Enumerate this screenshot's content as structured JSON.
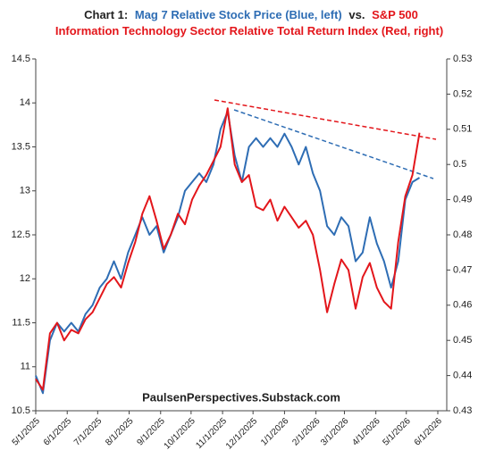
{
  "chart_data": {
    "type": "line",
    "title_parts": [
      {
        "text": "Chart 1:",
        "color": "#222222"
      },
      {
        "text": "Mag 7 Relative Stock Price (Blue, left)",
        "color": "#2e6db4"
      },
      {
        "text": "vs.",
        "color": "#222222"
      },
      {
        "text": "S&P 500 Information Technology Sector Relative Total Return Index (Red, right)",
        "color": "#e3161b"
      }
    ],
    "annotation": "PaulsenPerspectives.Substack.com",
    "x": [
      "5/1/2025",
      "5/8/2025",
      "5/15/2025",
      "5/22/2025",
      "5/29/2025",
      "6/5/2025",
      "6/12/2025",
      "6/19/2025",
      "6/26/2025",
      "7/3/2025",
      "7/10/2025",
      "7/17/2025",
      "7/24/2025",
      "7/31/2025",
      "8/7/2025",
      "8/14/2025",
      "8/21/2025",
      "8/28/2025",
      "9/4/2025",
      "9/11/2025",
      "9/18/2025",
      "9/25/2025",
      "10/2/2025",
      "10/9/2025",
      "10/16/2025",
      "10/23/2025",
      "10/30/2025",
      "11/6/2025",
      "11/13/2025",
      "11/20/2025",
      "11/27/2025",
      "12/4/2025",
      "12/11/2025",
      "12/18/2025",
      "12/25/2025",
      "1/1/2026",
      "1/8/2026",
      "1/15/2026",
      "1/22/2026",
      "1/29/2026",
      "2/5/2026",
      "2/12/2026",
      "2/19/2026",
      "2/26/2026",
      "3/5/2026",
      "3/12/2026",
      "3/19/2026",
      "3/26/2026",
      "4/2/2026",
      "4/9/2026",
      "4/16/2026",
      "4/23/2026",
      "4/30/2026",
      "5/7/2026",
      "5/14/2026"
    ],
    "series": [
      {
        "color": "#2e6db4",
        "axis": "y",
        "values": [
          10.9,
          10.7,
          11.3,
          11.5,
          11.4,
          11.5,
          11.4,
          11.6,
          11.7,
          11.9,
          12.0,
          12.2,
          12.0,
          12.3,
          12.5,
          12.7,
          12.5,
          12.6,
          12.3,
          12.5,
          12.7,
          13.0,
          13.1,
          13.2,
          13.1,
          13.3,
          13.7,
          13.9,
          13.4,
          13.1,
          13.5,
          13.6,
          13.5,
          13.6,
          13.5,
          13.65,
          13.5,
          13.3,
          13.5,
          13.2,
          13.0,
          12.6,
          12.5,
          12.7,
          12.6,
          12.2,
          12.3,
          12.7,
          12.4,
          12.2,
          11.9,
          12.2,
          12.9,
          13.1,
          13.15
        ]
      },
      {
        "color": "#e3161b",
        "axis": "y2",
        "values": [
          0.439,
          0.436,
          0.452,
          0.455,
          0.45,
          0.453,
          0.452,
          0.456,
          0.458,
          0.462,
          0.466,
          0.468,
          0.465,
          0.472,
          0.478,
          0.486,
          0.491,
          0.484,
          0.476,
          0.48,
          0.486,
          0.483,
          0.49,
          0.494,
          0.497,
          0.501,
          0.505,
          0.516,
          0.5,
          0.495,
          0.497,
          0.488,
          0.487,
          0.49,
          0.484,
          0.488,
          0.485,
          0.482,
          0.484,
          0.48,
          0.47,
          0.458,
          0.466,
          0.473,
          0.47,
          0.459,
          0.468,
          0.472,
          0.465,
          0.461,
          0.459,
          0.478,
          0.491,
          0.497,
          0.509
        ]
      }
    ],
    "xlim": [
      "5/1/2025",
      "6/1/2026"
    ],
    "xticks": [
      "5/1/2025",
      "6/1/2025",
      "7/1/2025",
      "8/1/2025",
      "9/1/2025",
      "10/1/2025",
      "11/1/2025",
      "12/1/2025",
      "1/1/2026",
      "2/1/2026",
      "3/1/2026",
      "4/1/2026",
      "5/1/2026",
      "6/1/2026"
    ],
    "ylim": [
      10.5,
      14.5
    ],
    "yticks": [
      10.5,
      11,
      11.5,
      12,
      12.5,
      13,
      13.5,
      14,
      14.5
    ],
    "y2lim": [
      0.43,
      0.53
    ],
    "y2ticks": [
      0.43,
      0.44,
      0.45,
      0.46,
      0.47,
      0.48,
      0.49,
      0.5,
      0.51,
      0.52,
      0.53
    ]
  }
}
